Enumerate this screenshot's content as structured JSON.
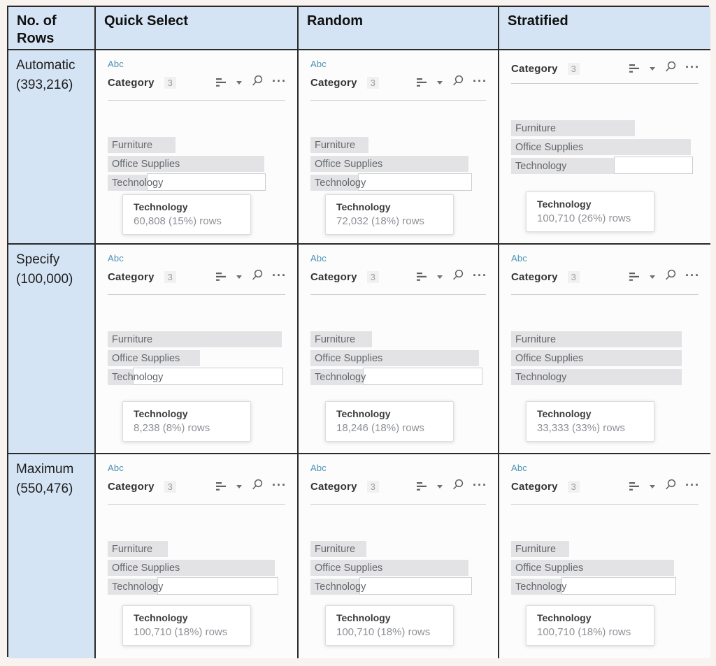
{
  "colors": {
    "page_bg": "#f8f3ef",
    "header_bg": "#d5e4f4",
    "border_color": "#2a2a2a",
    "bar_fill": "#e3e3e5",
    "abc_color": "#4a92b4"
  },
  "header": {
    "rows_label": "No. of\nRows",
    "columns": [
      "Quick Select",
      "Random",
      "Stratified"
    ]
  },
  "rows": [
    {
      "name": "Automatic",
      "count": "(393,216)"
    },
    {
      "name": "Specify",
      "count": "(100,000)"
    },
    {
      "name": "Maximum",
      "count": "(550,476)"
    }
  ],
  "icons": {
    "sort": "sort-bars-icon",
    "caret": "caret-down-icon",
    "search": "search-icon",
    "more_glyph": "···"
  },
  "cells": [
    {
      "row": "Automatic",
      "column": "Quick Select",
      "show_abc": true,
      "abc_label": "Abc",
      "field": {
        "name": "Category",
        "count": "3"
      },
      "bars": [
        {
          "label": "Furniture",
          "width_pct": 38
        },
        {
          "label": "Office Supplies",
          "width_pct": 88
        },
        {
          "label": "Technology",
          "width_pct": 22,
          "box_end_pct": 89
        }
      ],
      "tooltip": {
        "title": "Technology",
        "value": "60,808 (15%) rows"
      }
    },
    {
      "row": "Automatic",
      "column": "Random",
      "show_abc": true,
      "abc_label": "Abc",
      "field": {
        "name": "Category",
        "count": "3"
      },
      "bars": [
        {
          "label": "Furniture",
          "width_pct": 33
        },
        {
          "label": "Office Supplies",
          "width_pct": 90
        },
        {
          "label": "Technology",
          "width_pct": 27,
          "box_end_pct": 92
        }
      ],
      "tooltip": {
        "title": "Technology",
        "value": "72,032 (18%) rows"
      }
    },
    {
      "row": "Automatic",
      "column": "Stratified",
      "show_abc": false,
      "abc_label": "Abc",
      "field": {
        "name": "Category",
        "count": "3"
      },
      "bars": [
        {
          "label": "Furniture",
          "width_pct": 66
        },
        {
          "label": "Office Supplies",
          "width_pct": 96
        },
        {
          "label": "Technology",
          "width_pct": 55,
          "box_end_pct": 97
        }
      ],
      "tooltip": {
        "title": "Technology",
        "value": "100,710 (26%) rows"
      }
    },
    {
      "row": "Specify",
      "column": "Quick Select",
      "show_abc": true,
      "abc_label": "Abc",
      "field": {
        "name": "Category",
        "count": "3"
      },
      "bars": [
        {
          "label": "Furniture",
          "width_pct": 98
        },
        {
          "label": "Office Supplies",
          "width_pct": 52
        },
        {
          "label": "Technology",
          "width_pct": 14,
          "box_end_pct": 99
        }
      ],
      "tooltip": {
        "title": "Technology",
        "value": "8,238 (8%) rows"
      }
    },
    {
      "row": "Specify",
      "column": "Random",
      "show_abc": true,
      "abc_label": "Abc",
      "field": {
        "name": "Category",
        "count": "3"
      },
      "bars": [
        {
          "label": "Furniture",
          "width_pct": 35
        },
        {
          "label": "Office Supplies",
          "width_pct": 96
        },
        {
          "label": "Technology",
          "width_pct": 30,
          "box_end_pct": 98
        }
      ],
      "tooltip": {
        "title": "Technology",
        "value": "18,246 (18%) rows"
      }
    },
    {
      "row": "Specify",
      "column": "Stratified",
      "show_abc": true,
      "abc_label": "Abc",
      "field": {
        "name": "Category",
        "count": "3"
      },
      "bars": [
        {
          "label": "Furniture",
          "width_pct": 91
        },
        {
          "label": "Office Supplies",
          "width_pct": 91
        },
        {
          "label": "Technology",
          "width_pct": 91
        }
      ],
      "tooltip": {
        "title": "Technology",
        "value": "33,333 (33%) rows"
      }
    },
    {
      "row": "Maximum",
      "column": "Quick Select",
      "show_abc": true,
      "abc_label": "Abc",
      "field": {
        "name": "Category",
        "count": "3"
      },
      "bars": [
        {
          "label": "Furniture",
          "width_pct": 34
        },
        {
          "label": "Office Supplies",
          "width_pct": 94
        },
        {
          "label": "Technology",
          "width_pct": 28,
          "box_end_pct": 96
        }
      ],
      "tooltip": {
        "title": "Technology",
        "value": "100,710 (18%) rows"
      }
    },
    {
      "row": "Maximum",
      "column": "Random",
      "show_abc": true,
      "abc_label": "Abc",
      "field": {
        "name": "Category",
        "count": "3"
      },
      "bars": [
        {
          "label": "Furniture",
          "width_pct": 32
        },
        {
          "label": "Office Supplies",
          "width_pct": 90
        },
        {
          "label": "Technology",
          "width_pct": 28,
          "box_end_pct": 92
        }
      ],
      "tooltip": {
        "title": "Technology",
        "value": "100,710 (18%) rows"
      }
    },
    {
      "row": "Maximum",
      "column": "Stratified",
      "show_abc": true,
      "abc_label": "Abc",
      "field": {
        "name": "Category",
        "count": "3"
      },
      "bars": [
        {
          "label": "Furniture",
          "width_pct": 31
        },
        {
          "label": "Office Supplies",
          "width_pct": 87
        },
        {
          "label": "Technology",
          "width_pct": 27,
          "box_end_pct": 88
        }
      ],
      "tooltip": {
        "title": "Technology",
        "value": "100,710 (18%) rows"
      }
    }
  ]
}
